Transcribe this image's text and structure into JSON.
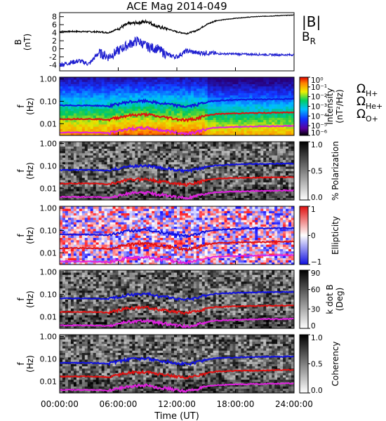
{
  "title": "ACE Mag 2014-049",
  "colors": {
    "total_field": "#000000",
    "radial_field": "#1f1fd0",
    "h_plus": "#1010e0",
    "he_plus": "#e01010",
    "o_plus": "#e020e0"
  },
  "chart_data": [
    {
      "type": "line",
      "panel": "magnetic field",
      "ylabel": "B\n(nT)",
      "ylim": [
        -5.5,
        9
      ],
      "yticks": [
        "-4",
        "-2",
        "0",
        "2",
        "4",
        "6",
        "8"
      ],
      "legend": [
        {
          "name": "|B|",
          "color": "#000000"
        },
        {
          "name": "B_R",
          "color": "#1f1fd0"
        }
      ],
      "series": [
        {
          "name": "|B|",
          "x_hours": [
            0,
            2,
            4,
            5,
            6,
            7,
            8,
            9,
            10,
            11,
            12,
            13,
            14,
            15,
            16,
            18,
            20,
            22,
            24
          ],
          "values": [
            4.3,
            4.3,
            4.2,
            4.0,
            5.0,
            6.2,
            6.5,
            6.8,
            5.5,
            5.0,
            4.2,
            3.8,
            4.5,
            6.0,
            7.0,
            7.6,
            8.0,
            8.2,
            8.4
          ]
        },
        {
          "name": "B_R",
          "x_hours": [
            0,
            1,
            2,
            3,
            4,
            5,
            6,
            7,
            8,
            9,
            10,
            11,
            12,
            13,
            14,
            15,
            16,
            18,
            20,
            22,
            24
          ],
          "values": [
            -4.0,
            -3.5,
            -3.0,
            -3.8,
            -1.0,
            -2.0,
            -0.5,
            1.0,
            2.0,
            0.5,
            0.0,
            -1.5,
            -2.0,
            -0.5,
            -1.0,
            -1.0,
            -1.2,
            -1.3,
            -1.4,
            -1.5,
            -1.5
          ]
        }
      ]
    },
    {
      "type": "heatmap",
      "panel": "intensity",
      "ylabel": "f\n(Hz)",
      "yticks": [
        "0.01",
        "0.10",
        "1.00"
      ],
      "colorbar_label": "Intensity\n(nT²/Hz)",
      "colorbar_ticks": [
        "10⁰",
        "10⁻¹",
        "10⁻²",
        "10⁻³",
        "10⁻⁴",
        "10⁻⁵",
        "10⁻⁶"
      ],
      "legend": [
        {
          "name": "Ω",
          "sub": "H+",
          "color": "#1010e0"
        },
        {
          "name": "Ω",
          "sub": "He+",
          "color": "#e01010"
        },
        {
          "name": "Ω",
          "sub": "O+",
          "color": "#e020e0"
        }
      ]
    },
    {
      "type": "heatmap",
      "panel": "polarization",
      "ylabel": "f\n(Hz)",
      "yticks": [
        "0.01",
        "0.10",
        "1.00"
      ],
      "colorbar_label": "% Polarization",
      "colorbar_ticks": [
        "1.0",
        "0.5",
        "0.0"
      ]
    },
    {
      "type": "heatmap",
      "panel": "ellipticity",
      "ylabel": "f\n(Hz)",
      "yticks": [
        "0.01",
        "0.10",
        "1.00"
      ],
      "colorbar_label": "Ellipticity",
      "colorbar_ticks": [
        "1",
        "0",
        "−1"
      ]
    },
    {
      "type": "heatmap",
      "panel": "k dot B",
      "ylabel": "f\n(Hz)",
      "yticks": [
        "0.01",
        "0.10",
        "1.00"
      ],
      "colorbar_label": "k dot B\n(Deg)",
      "colorbar_ticks": [
        "90",
        "60",
        "30",
        "0"
      ]
    },
    {
      "type": "heatmap",
      "panel": "coherency",
      "ylabel": "f\n(Hz)",
      "yticks": [
        "0.01",
        "0.10",
        "1.00"
      ],
      "colorbar_label": "Coherency",
      "colorbar_ticks": [
        "1.0",
        "0.5",
        "0.0"
      ]
    }
  ],
  "gyrofrequency_lines": {
    "x_hours": [
      0,
      2,
      4,
      5,
      6,
      7,
      8,
      9,
      10,
      11,
      12,
      13,
      14,
      15,
      16,
      18,
      20,
      22,
      24
    ],
    "h_plus_hz": [
      0.065,
      0.066,
      0.064,
      0.061,
      0.076,
      0.094,
      0.099,
      0.104,
      0.084,
      0.076,
      0.064,
      0.058,
      0.069,
      0.091,
      0.107,
      0.116,
      0.122,
      0.125,
      0.128
    ],
    "he_plus_hz": [
      0.016,
      0.0165,
      0.016,
      0.015,
      0.019,
      0.0235,
      0.025,
      0.026,
      0.021,
      0.019,
      0.016,
      0.0145,
      0.017,
      0.023,
      0.027,
      0.029,
      0.03,
      0.031,
      0.032
    ],
    "o_plus_hz": [
      0.0041,
      0.0041,
      0.004,
      0.0038,
      0.0048,
      0.0059,
      0.0062,
      0.0065,
      0.0053,
      0.0048,
      0.004,
      0.0036,
      0.0043,
      0.0057,
      0.0067,
      0.0072,
      0.0076,
      0.0078,
      0.008
    ]
  },
  "x_axis": {
    "label": "Time (UT)",
    "xlim_hours": [
      0,
      24
    ],
    "ticks": [
      "00:00:00",
      "06:00:00",
      "12:00:00",
      "18:00:00",
      "24:00:00"
    ]
  }
}
